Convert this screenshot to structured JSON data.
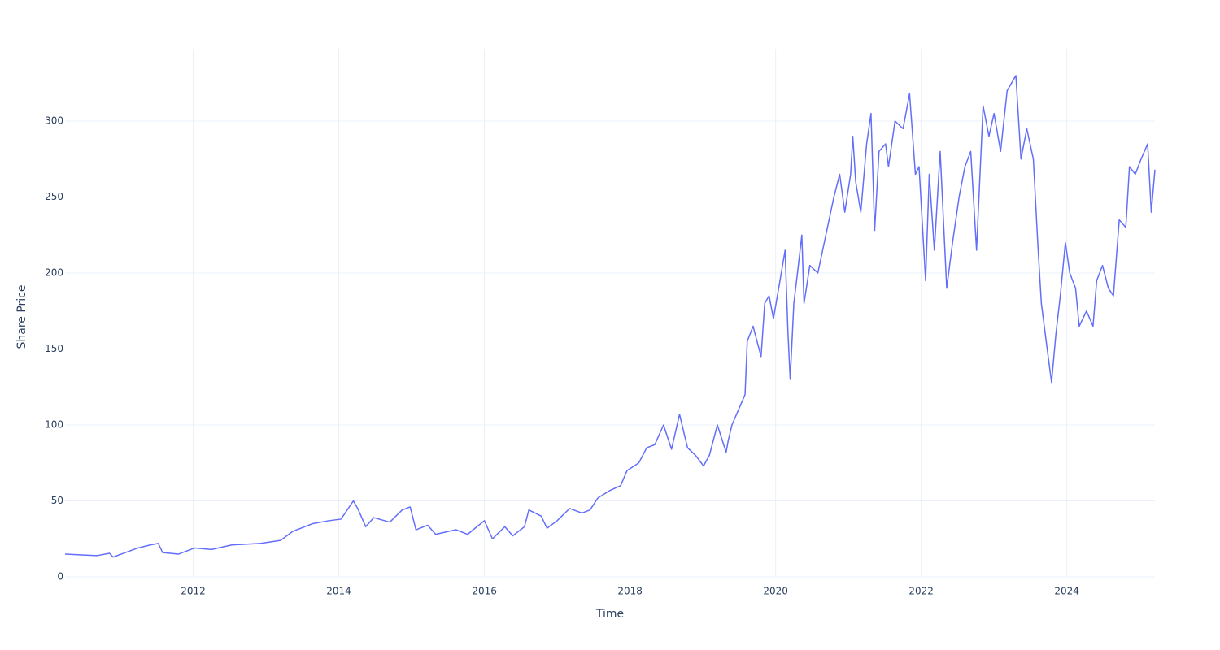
{
  "chart_data": {
    "type": "line",
    "x_label": "Time",
    "y_label": "Share Price",
    "color": "#636efa",
    "grid": true,
    "xlim": [
      2010.24,
      2025.21
    ],
    "ylim": [
      0,
      347.6
    ],
    "xticks": [
      2012,
      2014,
      2016,
      2018,
      2020,
      2022,
      2024
    ],
    "yticks": [
      0,
      50,
      100,
      150,
      200,
      250,
      300
    ],
    "x": [
      2010.24,
      2010.68,
      2010.85,
      2010.9,
      2011.24,
      2011.41,
      2011.52,
      2011.58,
      2011.8,
      2012.02,
      2012.25,
      2012.53,
      2012.92,
      2013.2,
      2013.37,
      2013.64,
      2013.87,
      2014.03,
      2014.2,
      2014.26,
      2014.37,
      2014.48,
      2014.7,
      2014.87,
      2014.98,
      2015.06,
      2015.22,
      2015.33,
      2015.61,
      2015.77,
      2016.0,
      2016.11,
      2016.28,
      2016.39,
      2016.55,
      2016.61,
      2016.78,
      2016.86,
      2017.0,
      2017.17,
      2017.34,
      2017.45,
      2017.56,
      2017.73,
      2017.87,
      2017.96,
      2018.12,
      2018.23,
      2018.34,
      2018.46,
      2018.57,
      2018.68,
      2018.79,
      2018.9,
      2019.01,
      2019.09,
      2019.2,
      2019.32,
      2019.35,
      2019.4,
      2019.58,
      2019.61,
      2019.69,
      2019.8,
      2019.85,
      2019.91,
      2019.97,
      2020.06,
      2020.13,
      2020.17,
      2020.2,
      2020.25,
      2020.3,
      2020.36,
      2020.39,
      2020.47,
      2020.58,
      2020.69,
      2020.8,
      2020.88,
      2020.95,
      2021.03,
      2021.06,
      2021.1,
      2021.17,
      2021.25,
      2021.31,
      2021.36,
      2021.42,
      2021.51,
      2021.55,
      2021.64,
      2021.75,
      2021.84,
      2021.92,
      2021.97,
      2022.06,
      2022.11,
      2022.18,
      2022.26,
      2022.35,
      2022.43,
      2022.52,
      2022.6,
      2022.68,
      2022.76,
      2022.85,
      2022.93,
      2023.0,
      2023.09,
      2023.18,
      2023.3,
      2023.37,
      2023.45,
      2023.54,
      2023.6,
      2023.65,
      2023.73,
      2023.79,
      2023.85,
      2023.91,
      2023.98,
      2024.04,
      2024.12,
      2024.17,
      2024.27,
      2024.36,
      2024.41,
      2024.49,
      2024.57,
      2024.64,
      2024.72,
      2024.81,
      2024.86,
      2024.94,
      2025.02,
      2025.11,
      2025.16,
      2025.21
    ],
    "values": [
      15,
      14,
      15.5,
      13,
      19,
      21,
      22,
      16,
      15,
      19,
      18,
      21,
      22,
      24,
      30,
      35,
      37,
      38,
      50,
      45,
      33,
      39,
      36,
      44,
      46,
      31,
      34,
      28,
      31,
      28,
      37,
      25,
      33,
      27,
      33,
      44,
      40,
      32,
      37,
      45,
      42,
      44,
      52,
      57,
      60,
      70,
      75,
      85,
      87,
      100,
      84,
      107,
      85,
      80,
      73,
      80,
      100,
      82,
      90,
      100,
      120,
      155,
      165,
      145,
      180,
      185,
      170,
      195,
      215,
      160,
      130,
      180,
      200,
      225,
      180,
      205,
      200,
      225,
      250,
      265,
      240,
      265,
      290,
      260,
      240,
      285,
      305,
      228,
      280,
      285,
      270,
      300,
      295,
      318,
      265,
      270,
      195,
      265,
      215,
      280,
      190,
      220,
      250,
      270,
      280,
      215,
      310,
      290,
      305,
      280,
      320,
      330,
      275,
      295,
      275,
      220,
      180,
      150,
      128,
      160,
      185,
      220,
      200,
      190,
      165,
      175,
      165,
      195,
      205,
      190,
      185,
      235,
      230,
      270,
      265,
      275,
      285,
      240,
      268
    ]
  }
}
